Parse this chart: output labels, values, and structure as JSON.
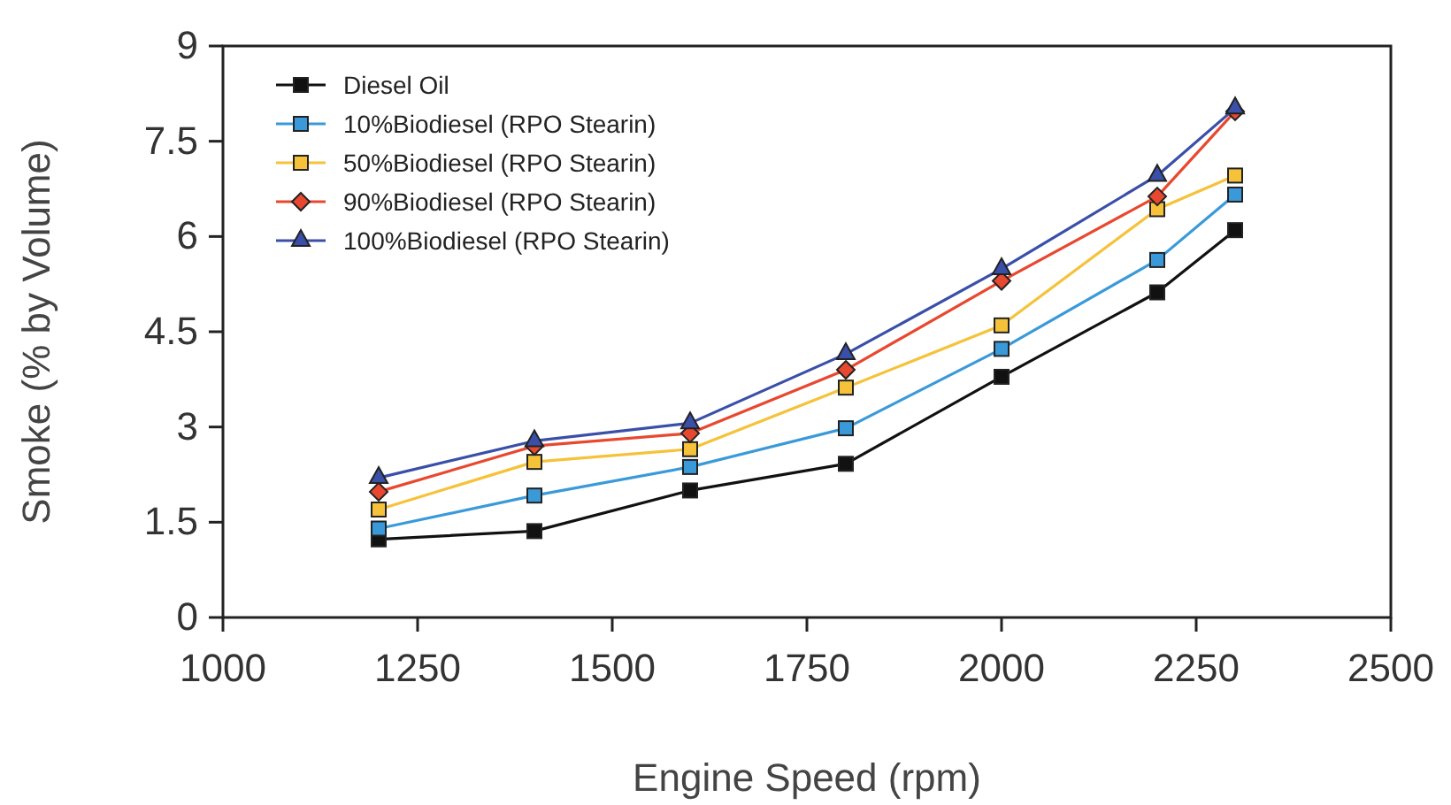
{
  "chart_data": {
    "type": "line",
    "xlabel": "Engine Speed (rpm)",
    "ylabel": "Smoke (% by Volume)",
    "x": [
      1200,
      1400,
      1600,
      1800,
      2000,
      2200,
      2300
    ],
    "xlim": [
      1000,
      2500
    ],
    "xticks": [
      1000,
      1250,
      1500,
      1750,
      2000,
      2250,
      2500
    ],
    "ylim": [
      0,
      9
    ],
    "yticks": [
      0,
      1.5,
      3,
      4.5,
      6,
      7.5,
      9
    ],
    "grid": false,
    "legend": "top left",
    "series": [
      {
        "name": "Diesel Oil",
        "color": "#111111",
        "marker": "square",
        "values": [
          1.23,
          1.36,
          2.0,
          2.42,
          3.79,
          5.12,
          6.1
        ]
      },
      {
        "name": "10%Biodiesel (RPO Stearin)",
        "color": "#3a9ad9",
        "marker": "square",
        "values": [
          1.4,
          1.92,
          2.37,
          2.98,
          4.23,
          5.63,
          6.66
        ]
      },
      {
        "name": "50%Biodiesel (RPO Stearin)",
        "color": "#f5c23a",
        "marker": "square",
        "values": [
          1.7,
          2.45,
          2.65,
          3.62,
          4.6,
          6.43,
          6.96
        ]
      },
      {
        "name": "90%Biodiesel (RPO Stearin)",
        "color": "#e8482f",
        "marker": "diamond",
        "values": [
          1.98,
          2.7,
          2.9,
          3.9,
          5.3,
          6.63,
          7.97
        ]
      },
      {
        "name": "100%Biodiesel (RPO Stearin)",
        "color": "#3a4fa8",
        "marker": "triangle",
        "values": [
          2.2,
          2.78,
          3.06,
          4.15,
          5.49,
          6.96,
          8.02
        ]
      }
    ]
  }
}
